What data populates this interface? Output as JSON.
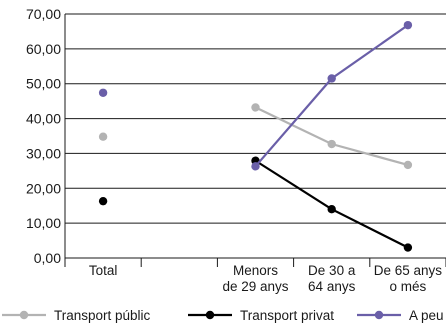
{
  "chart_data": {
    "type": "line",
    "categories": [
      "Total",
      "",
      "Menors\nde 29 anys",
      "De 30 a\n64 anys",
      "De 65 anys\no més"
    ],
    "ylim": [
      0,
      70
    ],
    "yticks": [
      0,
      10,
      20,
      30,
      40,
      50,
      60,
      70
    ],
    "ytick_labels": [
      "0,00",
      "10,00",
      "20,00",
      "30,00",
      "40,00",
      "50,00",
      "60,00",
      "70,00"
    ],
    "grid": "horizontal",
    "legend_position": "bottom",
    "series": [
      {
        "name": "Transport públic",
        "color": "#b3b3b3",
        "values": [
          34.8,
          null,
          43.2,
          32.7,
          26.7
        ]
      },
      {
        "name": "Transport privat",
        "color": "#000000",
        "values": [
          16.3,
          null,
          27.9,
          14.0,
          3.0
        ]
      },
      {
        "name": "A peu",
        "color": "#6a5fa8",
        "values": [
          47.4,
          null,
          26.3,
          51.5,
          66.8
        ]
      }
    ],
    "line_segments_exclude_first": true
  }
}
